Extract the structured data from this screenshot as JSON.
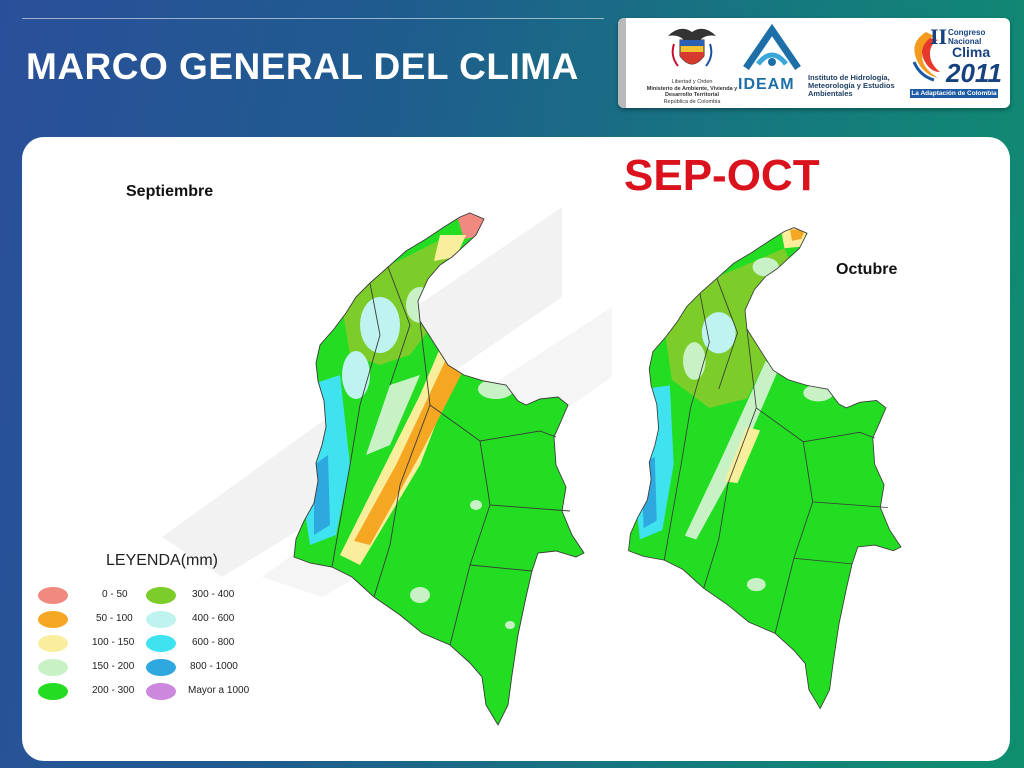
{
  "header": {
    "title": "MARCO GENERAL DEL CLIMA"
  },
  "logos": {
    "gov": {
      "line1": "Libertad y Orden",
      "line2": "Ministerio de Ambiente, Vivienda y Desarrollo Territorial",
      "line3": "República de Colombia"
    },
    "ideam": {
      "word": "IDEAM",
      "description": "Instituto de Hidrología, Meteorología y Estudios Ambientales"
    },
    "congreso": {
      "w1": "Congreso",
      "w2": "Nacional",
      "w3": "Clima",
      "year": "2011",
      "roman": "II",
      "tagline": "La Adaptación de Colombia"
    }
  },
  "main": {
    "period_title": "SEP-OCT",
    "map_left_label": "Septiembre",
    "map_right_label": "Octubre"
  },
  "legend": {
    "title": "LEYENDA(mm)",
    "items": [
      {
        "range": "0 - 50",
        "color": "#f08a80"
      },
      {
        "range": "50 - 100",
        "color": "#f5a623"
      },
      {
        "range": "100 - 150",
        "color": "#f8ee9c"
      },
      {
        "range": "150 - 200",
        "color": "#c8f2c6"
      },
      {
        "range": "200 - 300",
        "color": "#22dd22"
      },
      {
        "range": "300 - 400",
        "color": "#7ccc2a"
      },
      {
        "range": "400 - 600",
        "color": "#bff3f0"
      },
      {
        "range": "600 - 800",
        "color": "#3fe3f0"
      },
      {
        "range": "800 - 1000",
        "color": "#2fa8e0"
      },
      {
        "range": "Mayor a 1000",
        "color": "#cc88dd"
      }
    ]
  }
}
